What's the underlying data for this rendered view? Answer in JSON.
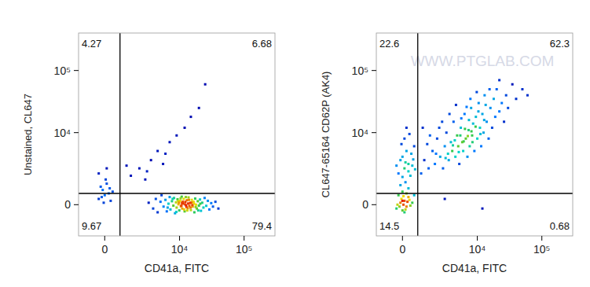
{
  "chart_data": [
    {
      "type": "scatter",
      "xlabel": "CD41a, FITC",
      "ylabel": "Unstained, CL647",
      "xlim": [
        -1500,
        300000
      ],
      "ylim": [
        -2000,
        400000
      ],
      "xticks": [
        0,
        {
          "value": 10000,
          "label": "10⁴"
        },
        {
          "value": 100000,
          "label": "10⁵"
        }
      ],
      "yticks": [
        0,
        {
          "value": 10000,
          "label": "10⁴"
        },
        {
          "value": 100000,
          "label": "10⁵"
        }
      ],
      "gate_x": 800,
      "gate_y": 600,
      "quadrants": {
        "upper_left": 4.27,
        "upper_right": 6.68,
        "lower_left": 9.67,
        "lower_right": 79.4
      },
      "x": [
        3200,
        3800,
        4200,
        4500,
        5000,
        5200,
        5600,
        6000,
        6300,
        6700,
        7000,
        7200,
        7600,
        8000,
        8200,
        8500,
        8800,
        9000,
        9300,
        9600,
        9900,
        10200,
        10500,
        10800,
        11000,
        11300,
        11600,
        12000,
        12300,
        12600,
        13000,
        13400,
        13800,
        14200,
        14600,
        15000,
        15500,
        16000,
        16500,
        17000,
        17500,
        18000,
        18600,
        19200,
        20000,
        20800,
        21500,
        22500,
        23500,
        24500,
        26000,
        27500,
        29000,
        31000,
        33000,
        36000,
        40000,
        11200,
        9800,
        12800,
        10400,
        13600,
        15800,
        8900,
        14000,
        16800,
        11800,
        9500,
        12500,
        10700,
        13200,
        7800,
        17800,
        15300,
        19500,
        6500,
        21000,
        12100,
        14800,
        10900,
        -300,
        -100,
        0,
        100,
        200,
        -200,
        300,
        50,
        -150,
        250,
        400,
        -50,
        1500,
        2200,
        2800,
        3500,
        4500,
        5500,
        7000,
        9000,
        12000,
        15000,
        20000,
        3000,
        6000,
        25000,
        1200,
        100,
        -300
      ],
      "values": [
        100,
        -200,
        300,
        -400,
        150,
        500,
        -100,
        250,
        -350,
        50,
        400,
        -250,
        180,
        -50,
        350,
        -450,
        120,
        -150,
        280,
        20,
        -300,
        200,
        -80,
        420,
        -200,
        60,
        300,
        -350,
        140,
        -30,
        230,
        -180,
        380,
        -60,
        90,
        -280,
        250,
        -100,
        150,
        -400,
        320,
        0,
        -200,
        180,
        -50,
        270,
        -320,
        100,
        -150,
        350,
        -60,
        200,
        -250,
        80,
        -100,
        150,
        -200,
        150,
        100,
        -120,
        330,
        60,
        -20,
        -380,
        250,
        50,
        -250,
        180,
        400,
        -50,
        -300,
        300,
        -120,
        110,
        -300,
        -150,
        50,
        20,
        -150,
        80,
        300,
        800,
        500,
        1200,
        600,
        1000,
        200,
        1500,
        400,
        900,
        700,
        100,
        1800,
        2500,
        1500,
        3500,
        5000,
        3000,
        7000,
        9000,
        12000,
        18000,
        25000,
        2200,
        4500,
        60000,
        2800,
        2500,
        2000
      ]
    },
    {
      "type": "scatter",
      "xlabel": "CD41a, FITC",
      "ylabel": "CL647-65164 CD62P (AK4)",
      "watermark": "WWW.PTGLAB.COM",
      "xlim": [
        -1500,
        300000
      ],
      "ylim": [
        -2000,
        400000
      ],
      "xticks": [
        0,
        {
          "value": 10000,
          "label": "10⁴"
        },
        {
          "value": 100000,
          "label": "10⁵"
        }
      ],
      "yticks": [
        0,
        {
          "value": 10000,
          "label": "10⁴"
        },
        {
          "value": 100000,
          "label": "10⁵"
        }
      ],
      "gate_x": 800,
      "gate_y": 600,
      "quadrants": {
        "upper_left": 22.6,
        "upper_right": 62.3,
        "lower_left": 14.5,
        "lower_right": 0.68
      },
      "x": [
        -300,
        -100,
        0,
        100,
        200,
        300,
        -200,
        50,
        150,
        250,
        -50,
        400,
        0,
        -250,
        350,
        100,
        200,
        -150,
        50,
        500,
        300,
        -100,
        150,
        600,
        0,
        -200,
        100,
        300,
        0,
        400,
        200,
        -100,
        500,
        600,
        100,
        300,
        -300,
        450,
        200,
        0,
        550,
        -50,
        350,
        150,
        650,
        1000,
        1200,
        1500,
        1800,
        2000,
        2200,
        2500,
        2800,
        3000,
        3200,
        3500,
        3800,
        4000,
        4200,
        4500,
        4800,
        5000,
        5200,
        5500,
        5800,
        6000,
        6300,
        6600,
        7000,
        7300,
        7600,
        8000,
        8300,
        8600,
        9000,
        9500,
        10000,
        10500,
        11000,
        11500,
        12000,
        12500,
        13000,
        14000,
        15000,
        16000,
        17000,
        18000,
        19000,
        20000,
        22000,
        24000,
        26000,
        28000,
        30000,
        35000,
        40000,
        50000,
        60000,
        1400,
        2400,
        3400,
        4400,
        5400,
        6400,
        7400,
        8400,
        9400,
        10400,
        3600,
        2700,
        4600,
        7800,
        1600,
        5600,
        6800,
        9800,
        12800,
        15500,
        2100,
        3100,
        4100,
        5100,
        6100,
        7100,
        8100,
        11200,
        13500,
        1100,
        22000,
        3000,
        12000
      ],
      "values": [
        -200,
        100,
        -300,
        200,
        -100,
        400,
        500,
        0,
        -250,
        150,
        300,
        -50,
        700,
        0,
        250,
        -400,
        600,
        -100,
        450,
        100,
        900,
        1100,
        1300,
        500,
        200,
        2000,
        2500,
        3000,
        4000,
        1800,
        5000,
        3500,
        2800,
        6000,
        8000,
        2200,
        2800,
        4500,
        12000,
        1700,
        3600,
        6500,
        9500,
        3200,
        2400,
        2000,
        3500,
        2500,
        5000,
        3000,
        8000,
        4000,
        2500,
        6000,
        10000,
        3500,
        7000,
        5000,
        15000,
        4000,
        9000,
        6000,
        3000,
        12000,
        7000,
        5000,
        20000,
        8000,
        4000,
        11000,
        6000,
        25000,
        9000,
        14000,
        5000,
        18000,
        8000,
        30000,
        12000,
        6000,
        20000,
        10000,
        40000,
        15000,
        8000,
        25000,
        12000,
        35000,
        18000,
        50000,
        22000,
        30000,
        15000,
        40000,
        25000,
        60000,
        35000,
        50000,
        40000,
        6500,
        12000,
        4500,
        7500,
        9000,
        11500,
        16000,
        7000,
        12500,
        22000,
        20000,
        15000,
        28000,
        35000,
        9000,
        17000,
        26000,
        45000,
        16000,
        50000,
        4500,
        3800,
        6200,
        4800,
        7200,
        8800,
        10500,
        9500,
        28000,
        12000,
        70000,
        300,
        -200
      ]
    }
  ]
}
